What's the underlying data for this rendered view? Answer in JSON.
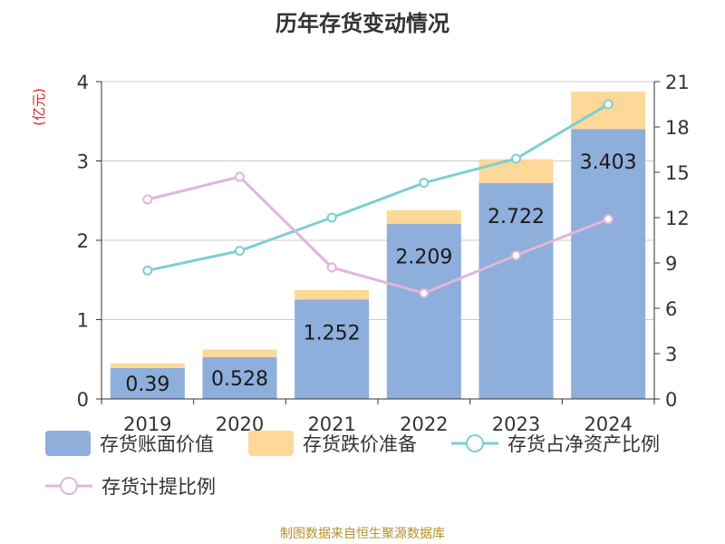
{
  "title": "历年存货变动情况",
  "source": "制图数据来自恒生聚源数据库",
  "chart_data": {
    "type": "bar",
    "stacked": true,
    "categories": [
      "2019",
      "2020",
      "2021",
      "2022",
      "2023",
      "2024"
    ],
    "ylabel_left": "(亿元)",
    "ylim_left": [
      0,
      4
    ],
    "yticks_left": [
      "0",
      "1",
      "2",
      "3",
      "4"
    ],
    "ylim_right": [
      0,
      21
    ],
    "yticks_right": [
      "0",
      "3",
      "6",
      "9",
      "12",
      "15",
      "18",
      "21"
    ],
    "grid": true,
    "legend_position": "bottom",
    "series": [
      {
        "name": "存货账面价值",
        "kind": "bar",
        "axis": "left",
        "color": "#8eaedb",
        "values": [
          0.39,
          0.528,
          1.252,
          2.209,
          2.722,
          3.403
        ],
        "labels": [
          "0.39",
          "0.528",
          "1.252",
          "2.209",
          "2.722",
          "3.403"
        ]
      },
      {
        "name": "存货跌价准备",
        "kind": "bar",
        "axis": "left",
        "color": "#fdd898",
        "values": [
          0.06,
          0.095,
          0.12,
          0.17,
          0.3,
          0.47
        ]
      },
      {
        "name": "存货占净资产比例",
        "kind": "line",
        "axis": "right",
        "color": "#7ccfd2",
        "values": [
          8.5,
          9.8,
          12.0,
          14.3,
          15.9,
          19.5
        ]
      },
      {
        "name": "存货计提比例",
        "kind": "line",
        "axis": "right",
        "color": "#e3b4da",
        "values": [
          13.2,
          14.7,
          8.7,
          7.0,
          9.5,
          11.9
        ]
      }
    ]
  }
}
